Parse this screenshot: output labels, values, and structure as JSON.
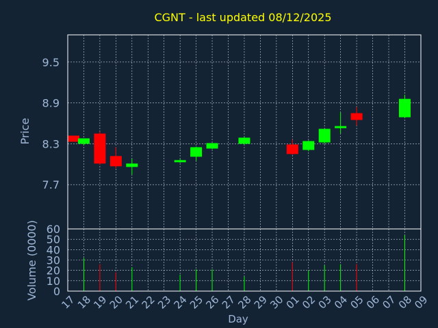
{
  "chart_data": {
    "type": "candlestick",
    "title": "CGNT - last updated 08/12/2025",
    "xlabel": "Day",
    "x_tick_labels": [
      "17",
      "18",
      "19",
      "20",
      "21",
      "22",
      "23",
      "24",
      "25",
      "26",
      "27",
      "28",
      "29",
      "30",
      "01",
      "02",
      "03",
      "04",
      "05",
      "06",
      "07",
      "08",
      "09"
    ],
    "price_panel": {
      "ylabel": "Price",
      "ylim": [
        7.05,
        9.9
      ],
      "y_ticks": [
        7.7,
        8.3,
        8.9,
        9.5
      ],
      "y_tick_labels": [
        "7.7",
        "8.3",
        "8.9",
        "9.5"
      ],
      "grid": true
    },
    "volume_panel": {
      "ylabel": "Volume (0000)",
      "ylim": [
        0,
        60
      ],
      "y_ticks": [
        0,
        10,
        20,
        30,
        40,
        50,
        60
      ],
      "y_tick_labels": [
        "0",
        "10",
        "20",
        "30",
        "40",
        "50",
        "60"
      ],
      "grid": true
    },
    "candles": [
      {
        "day": "17",
        "open": 8.42,
        "high": 8.42,
        "low": 8.33,
        "close": 8.33,
        "volume": 0
      },
      {
        "day": "18",
        "open": 8.3,
        "high": 8.38,
        "low": 8.28,
        "close": 8.38,
        "volume": 32
      },
      {
        "day": "19",
        "open": 8.45,
        "high": 8.48,
        "low": 7.99,
        "close": 8.01,
        "volume": 26
      },
      {
        "day": "20",
        "open": 8.12,
        "high": 8.25,
        "low": 7.94,
        "close": 7.97,
        "volume": 18
      },
      {
        "day": "21",
        "open": 7.96,
        "high": 8.08,
        "low": 7.85,
        "close": 8.01,
        "volume": 23
      },
      {
        "day": "24",
        "open": 8.03,
        "high": 8.08,
        "low": 8.02,
        "close": 8.06,
        "volume": 16
      },
      {
        "day": "25",
        "open": 8.11,
        "high": 8.26,
        "low": 8.05,
        "close": 8.25,
        "volume": 21
      },
      {
        "day": "26",
        "open": 8.23,
        "high": 8.31,
        "low": 8.22,
        "close": 8.31,
        "volume": 21
      },
      {
        "day": "28",
        "open": 8.3,
        "high": 8.4,
        "low": 8.29,
        "close": 8.39,
        "volume": 14
      },
      {
        "day": "01",
        "open": 8.29,
        "high": 8.36,
        "low": 8.14,
        "close": 8.15,
        "volume": 28
      },
      {
        "day": "02",
        "open": 8.21,
        "high": 8.35,
        "low": 8.19,
        "close": 8.34,
        "volume": 20
      },
      {
        "day": "03",
        "open": 8.32,
        "high": 8.52,
        "low": 8.3,
        "close": 8.52,
        "volume": 25
      },
      {
        "day": "04",
        "open": 8.54,
        "high": 8.76,
        "low": 8.45,
        "close": 8.56,
        "volume": 26
      },
      {
        "day": "05",
        "open": 8.75,
        "high": 8.84,
        "low": 8.57,
        "close": 8.65,
        "volume": 26
      },
      {
        "day": "08",
        "open": 8.69,
        "high": 9.02,
        "low": 8.68,
        "close": 8.96,
        "volume": 54
      }
    ],
    "colors": {
      "background": "#132334",
      "up": "#00ff00",
      "down": "#ff0000",
      "grid": "#c8d0e0",
      "axis_text": "#a0b8d8",
      "title_text": "#ffff00",
      "frame": "#ffffff"
    }
  }
}
